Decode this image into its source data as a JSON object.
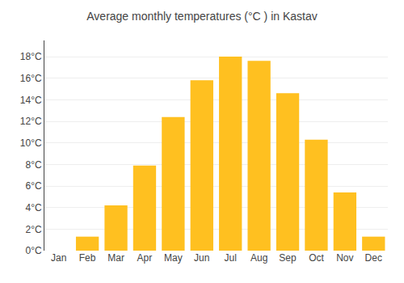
{
  "chart_data": {
    "type": "bar",
    "title": "Average monthly temperatures (°C ) in Kastav",
    "categories": [
      "Jan",
      "Feb",
      "Mar",
      "Apr",
      "May",
      "Jun",
      "Jul",
      "Aug",
      "Sep",
      "Oct",
      "Nov",
      "Dec"
    ],
    "values": [
      0.0,
      1.3,
      4.2,
      7.9,
      12.4,
      15.8,
      18.0,
      17.6,
      14.6,
      10.3,
      5.4,
      1.3
    ],
    "color": "#FFC020",
    "ylim": [
      0,
      19.5
    ],
    "yticks": [
      {
        "value": 0,
        "label": "0°C"
      },
      {
        "value": 2,
        "label": "2°C"
      },
      {
        "value": 4,
        "label": "4°C"
      },
      {
        "value": 6,
        "label": "6°C"
      },
      {
        "value": 8,
        "label": "8°C"
      },
      {
        "value": 10,
        "label": "10°C"
      },
      {
        "value": 12,
        "label": "12°C"
      },
      {
        "value": 14,
        "label": "14°C"
      },
      {
        "value": 16,
        "label": "16°C"
      },
      {
        "value": 18,
        "label": "18°C"
      }
    ],
    "grid": true
  }
}
